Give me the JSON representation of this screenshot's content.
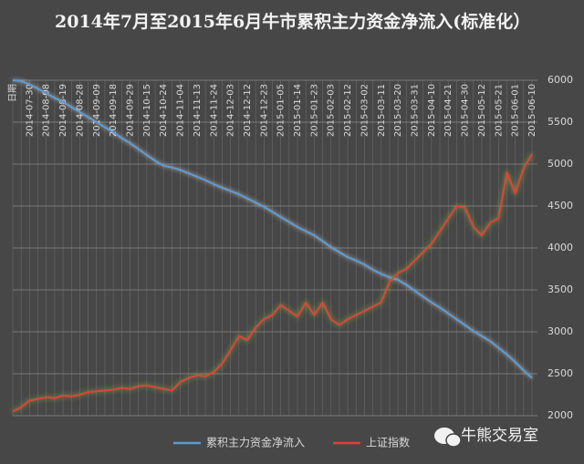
{
  "chart_data": {
    "type": "line",
    "title": "2014年7月至2015年6月牛市累积主力资金净流入(标准化）",
    "categories": [
      "日期",
      null,
      "2014-07-30",
      null,
      "2014-08-08",
      null,
      "2014-08-19",
      null,
      "2014-08-28",
      null,
      "2014-09-09",
      null,
      "2014-09-18",
      null,
      "2014-09-29",
      null,
      "2014-10-15",
      null,
      "2014-10-24",
      null,
      "2014-11-04",
      null,
      "2014-11-13",
      null,
      "2014-11-24",
      null,
      "2014-12-03",
      null,
      "2014-12-12",
      null,
      "2014-12-23",
      null,
      "2015-01-05",
      null,
      "2015-01-14",
      null,
      "2015-01-23",
      null,
      "2015-02-03",
      null,
      "2015-02-12",
      null,
      "2015-03-02",
      null,
      "2015-03-11",
      null,
      "2015-03-20",
      null,
      "2015-03-31",
      null,
      "2015-04-10",
      null,
      "2015-04-21",
      null,
      "2015-04-30",
      null,
      "2015-05-12",
      null,
      "2015-05-21",
      null,
      "2015-06-01",
      null,
      "2015-06-10"
    ],
    "series": [
      {
        "name": "累积主力资金净流入",
        "color": "#5b9bd5",
        "values": [
          6000,
          5990,
          5950,
          5900,
          5840,
          5790,
          5740,
          5680,
          5620,
          5560,
          5500,
          5440,
          5380,
          5310,
          5250,
          5180,
          5110,
          5040,
          4980,
          4960,
          4930,
          4890,
          4850,
          4810,
          4760,
          4720,
          4680,
          4640,
          4590,
          4540,
          4490,
          4430,
          4370,
          4310,
          4250,
          4200,
          4150,
          4080,
          4010,
          3950,
          3890,
          3850,
          3800,
          3740,
          3690,
          3650,
          3620,
          3560,
          3490,
          3420,
          3350,
          3290,
          3220,
          3150,
          3080,
          3010,
          2950,
          2890,
          2810,
          2730,
          2640,
          2540,
          2450
        ]
      },
      {
        "name": "上证指数",
        "color": "#e0403a",
        "values": [
          2050,
          2100,
          2180,
          2200,
          2220,
          2210,
          2240,
          2230,
          2250,
          2280,
          2290,
          2300,
          2310,
          2330,
          2320,
          2350,
          2360,
          2340,
          2320,
          2300,
          2400,
          2450,
          2480,
          2470,
          2520,
          2620,
          2780,
          2950,
          2900,
          3050,
          3150,
          3200,
          3320,
          3250,
          3180,
          3350,
          3200,
          3350,
          3150,
          3080,
          3150,
          3200,
          3250,
          3300,
          3350,
          3600,
          3700,
          3750,
          3850,
          3950,
          4050,
          4200,
          4350,
          4500,
          4480,
          4250,
          4150,
          4300,
          4350,
          4900,
          4650,
          4950,
          5120
        ]
      }
    ],
    "ylim": [
      2000,
      6000
    ],
    "yticks": [
      2000,
      2500,
      3000,
      3500,
      4000,
      4500,
      5000,
      5500,
      6000
    ],
    "grid": true,
    "legend": "bottom",
    "watermark": "牛熊交易室"
  }
}
